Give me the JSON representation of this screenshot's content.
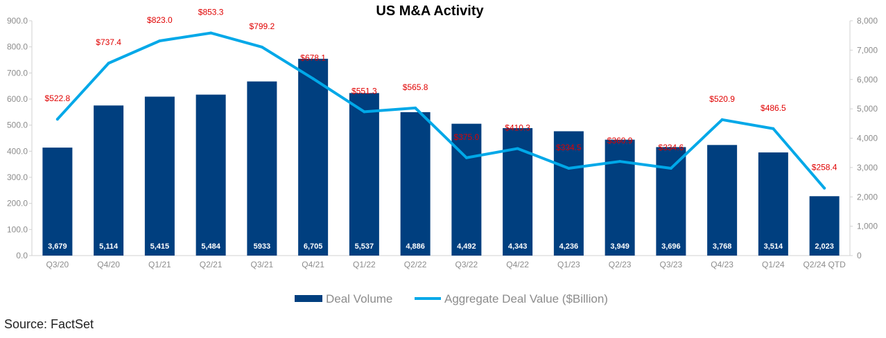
{
  "chart_data": {
    "type": "bar",
    "title": "US M&A Activity",
    "categories": [
      "Q3/20",
      "Q4/20",
      "Q1/21",
      "Q2/21",
      "Q3/21",
      "Q4/21",
      "Q1/22",
      "Q2/22",
      "Q3/22",
      "Q4/22",
      "Q1/23",
      "Q2/23",
      "Q3/23",
      "Q4/23",
      "Q1/24",
      "Q2/24 QTD"
    ],
    "series": [
      {
        "name": "Deal Volume",
        "type": "bar",
        "axis": "right",
        "color": "#003f7f",
        "values": [
          3679,
          5114,
          5415,
          5484,
          5933,
          6705,
          5537,
          4886,
          4492,
          4343,
          4236,
          3949,
          3696,
          3768,
          3514,
          2023
        ],
        "labels": [
          "3,679",
          "5,114",
          "5,415",
          "5,484",
          "5933",
          "6,705",
          "5,537",
          "4,886",
          "4,492",
          "4,343",
          "4,236",
          "3,949",
          "3,696",
          "3,768",
          "3,514",
          "2,023"
        ]
      },
      {
        "name": "Aggregate Deal Value ($Billion)",
        "type": "line",
        "axis": "left",
        "color": "#00a8e8",
        "values": [
          522.8,
          737.4,
          823.0,
          853.3,
          799.2,
          678.1,
          551.3,
          565.8,
          375.0,
          410.3,
          334.5,
          360.9,
          334.6,
          520.9,
          486.5,
          258.4
        ],
        "labels": [
          "$522.8",
          "$737.4",
          "$823.0",
          "$853.3",
          "$799.2",
          "$678.1",
          "$551.3",
          "$565.8",
          "$375.0",
          "$410.3",
          "$334.5",
          "$360.9",
          "$334.6",
          "$520.9",
          "$486.5",
          "$258.4"
        ]
      }
    ],
    "y_left": {
      "min": 0,
      "max": 900,
      "ticks": [
        "0.0",
        "100.0",
        "200.0",
        "300.0",
        "400.0",
        "500.0",
        "600.0",
        "700.0",
        "800.0",
        "900.0"
      ]
    },
    "y_right": {
      "min": 0,
      "max": 8000,
      "ticks": [
        "0",
        "1,000",
        "2,000",
        "3,000",
        "4,000",
        "5,000",
        "6,000",
        "7,000",
        "8,000"
      ]
    },
    "label_color": "#e00000",
    "legend_position": "bottom",
    "grid": false
  },
  "source": "Source: FactSet"
}
